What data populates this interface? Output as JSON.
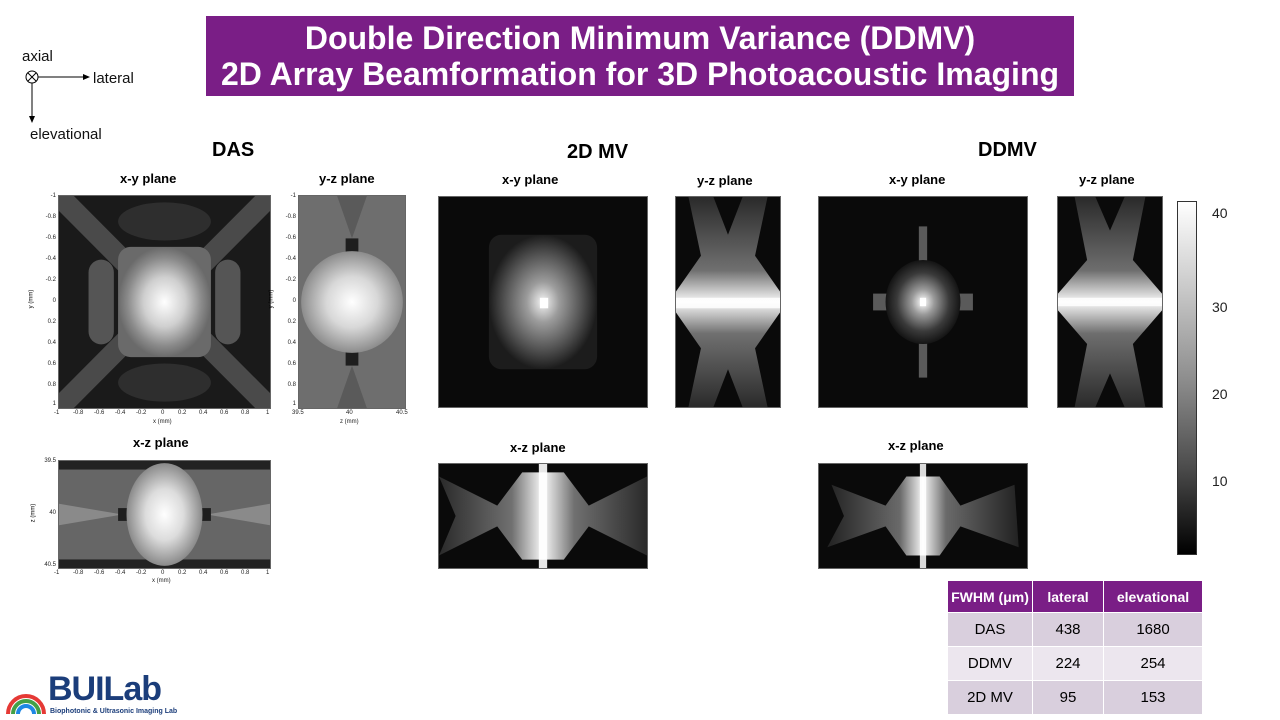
{
  "title": {
    "line1": "Double Direction Minimum Variance (DDMV)",
    "line2": "2D Array Beamformation for 3D Photoacoustic Imaging"
  },
  "orientation": {
    "axial": "axial",
    "lateral": "lateral",
    "elevational": "elevational"
  },
  "methods": {
    "das": "DAS",
    "mv": "2D MV",
    "ddmv": "DDMV"
  },
  "planes": {
    "xy": "x-y plane",
    "yz": "y-z plane",
    "xz": "x-z plane"
  },
  "das_axes": {
    "x_ticks": [
      "-1",
      "-0.8",
      "-0.6",
      "-0.4",
      "-0.2",
      "0",
      "0.2",
      "0.4",
      "0.6",
      "0.8",
      "1"
    ],
    "y_ticks": [
      "-1",
      "-0.8",
      "-0.6",
      "-0.4",
      "-0.2",
      "0",
      "0.2",
      "0.4",
      "0.6",
      "0.8",
      "1"
    ],
    "z_ticks_yz": [
      "39.5",
      "40",
      "40.5"
    ],
    "z_ticks_xz": [
      "39.5",
      "40",
      "40.5"
    ],
    "x_label": "x (mm)",
    "y_label": "y (mm)",
    "z_label": "z (mm)"
  },
  "colorbar": {
    "ticks": [
      "40",
      "30",
      "20",
      "10"
    ]
  },
  "fwhm_table": {
    "header": [
      "FWHM (μm)",
      "lateral",
      "elevational"
    ],
    "rows": [
      {
        "method": "DAS",
        "lateral": "438",
        "elevational": "1680"
      },
      {
        "method": "DDMV",
        "lateral": "224",
        "elevational": "254"
      },
      {
        "method": "2D MV",
        "lateral": "95",
        "elevational": "153"
      }
    ]
  },
  "logo": {
    "text": "BUILab",
    "subtitle": "Biophotonic & Ultrasonic Imaging Lab"
  },
  "colors": {
    "banner": "#7a1e86",
    "table_header": "#7a1e86",
    "logo": "#1b3d7a"
  }
}
